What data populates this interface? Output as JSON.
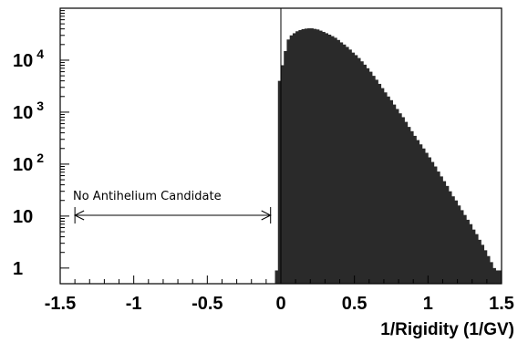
{
  "chart_data": {
    "type": "bar",
    "title": "",
    "xlabel": "1/Rigidity (1/GV)",
    "ylabel": "",
    "xlim": [
      -1.5,
      1.5
    ],
    "ylim": [
      0.5,
      100000
    ],
    "y_scale": "log",
    "grid": false,
    "bar_color": "#2a2a2a",
    "x_tick_labels": [
      "-1.5",
      "-1",
      "-0.5",
      "0",
      "0.5",
      "1",
      "1.5"
    ],
    "y_tick_labels": [
      {
        "value": 1,
        "base": "1",
        "exp": ""
      },
      {
        "value": 10,
        "base": "10",
        "exp": ""
      },
      {
        "value": 100,
        "base": "10",
        "exp": "2"
      },
      {
        "value": 1000,
        "base": "10",
        "exp": "3"
      },
      {
        "value": 10000,
        "base": "10",
        "exp": "4"
      }
    ],
    "annotation": {
      "text": "No Antihelium Candidate",
      "x_from": -1.4,
      "x_to": -0.07
    },
    "reference_line_x": 0,
    "bin_width": 0.02,
    "bins": [
      [
        -0.04,
        0.9
      ],
      [
        -0.02,
        4000
      ],
      [
        0.0,
        8000
      ],
      [
        0.02,
        15000
      ],
      [
        0.04,
        25000
      ],
      [
        0.06,
        30000
      ],
      [
        0.08,
        33000
      ],
      [
        0.1,
        36000
      ],
      [
        0.12,
        38000
      ],
      [
        0.14,
        39500
      ],
      [
        0.16,
        40500
      ],
      [
        0.18,
        41000
      ],
      [
        0.2,
        41000
      ],
      [
        0.22,
        40000
      ],
      [
        0.24,
        39000
      ],
      [
        0.26,
        37000
      ],
      [
        0.28,
        35000
      ],
      [
        0.3,
        33000
      ],
      [
        0.32,
        31000
      ],
      [
        0.34,
        29000
      ],
      [
        0.36,
        27000
      ],
      [
        0.38,
        24500
      ],
      [
        0.4,
        22000
      ],
      [
        0.42,
        20000
      ],
      [
        0.44,
        18000
      ],
      [
        0.46,
        16000
      ],
      [
        0.48,
        14000
      ],
      [
        0.5,
        12500
      ],
      [
        0.52,
        11000
      ],
      [
        0.54,
        9500
      ],
      [
        0.56,
        8200
      ],
      [
        0.58,
        7000
      ],
      [
        0.6,
        6000
      ],
      [
        0.62,
        5000
      ],
      [
        0.64,
        4200
      ],
      [
        0.66,
        3500
      ],
      [
        0.68,
        2900
      ],
      [
        0.7,
        2400
      ],
      [
        0.72,
        2000
      ],
      [
        0.74,
        1700
      ],
      [
        0.76,
        1400
      ],
      [
        0.78,
        1150
      ],
      [
        0.8,
        950
      ],
      [
        0.82,
        800
      ],
      [
        0.84,
        650
      ],
      [
        0.86,
        520
      ],
      [
        0.88,
        430
      ],
      [
        0.9,
        350
      ],
      [
        0.92,
        290
      ],
      [
        0.94,
        240
      ],
      [
        0.96,
        200
      ],
      [
        0.98,
        165
      ],
      [
        1.0,
        135
      ],
      [
        1.02,
        110
      ],
      [
        1.04,
        90
      ],
      [
        1.06,
        72
      ],
      [
        1.08,
        58
      ],
      [
        1.1,
        47
      ],
      [
        1.12,
        38
      ],
      [
        1.14,
        30
      ],
      [
        1.16,
        24
      ],
      [
        1.18,
        20
      ],
      [
        1.2,
        16
      ],
      [
        1.22,
        13
      ],
      [
        1.24,
        10.5
      ],
      [
        1.26,
        8.5
      ],
      [
        1.28,
        7
      ],
      [
        1.3,
        5.5
      ],
      [
        1.32,
        4.5
      ],
      [
        1.34,
        3.5
      ],
      [
        1.36,
        2.8
      ],
      [
        1.38,
        2.2
      ],
      [
        1.4,
        1.7
      ],
      [
        1.42,
        1.3
      ],
      [
        1.44,
        1
      ],
      [
        1.46,
        0.9
      ],
      [
        1.48,
        0.9
      ]
    ]
  }
}
